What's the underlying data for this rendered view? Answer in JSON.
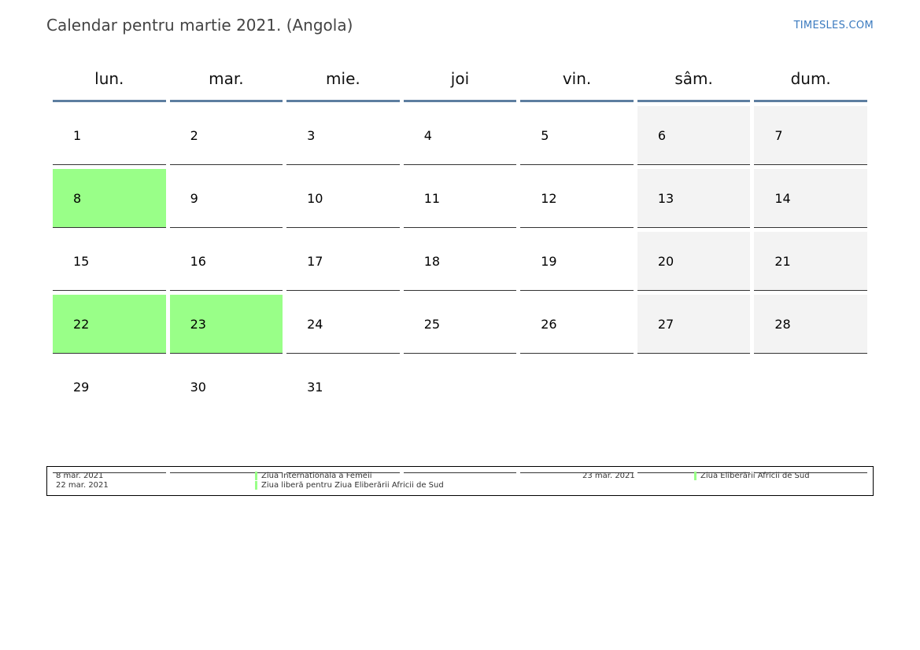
{
  "header": {
    "title": "Calendar pentru martie 2021. (Angola)",
    "brand": "TIMESLES.COM"
  },
  "colors": {
    "holiday": "#99ff88",
    "weekend": "#f3f3f3",
    "header_rule": "#5d7ea0",
    "brand": "#3a7abf"
  },
  "weekdays": [
    "lun.",
    "mar.",
    "mie.",
    "joi",
    "vin.",
    "sâm.",
    "dum."
  ],
  "weeks": [
    [
      {
        "day": "1"
      },
      {
        "day": "2"
      },
      {
        "day": "3"
      },
      {
        "day": "4"
      },
      {
        "day": "5"
      },
      {
        "day": "6",
        "weekend": true
      },
      {
        "day": "7",
        "weekend": true
      }
    ],
    [
      {
        "day": "8",
        "holiday": true
      },
      {
        "day": "9"
      },
      {
        "day": "10"
      },
      {
        "day": "11"
      },
      {
        "day": "12"
      },
      {
        "day": "13",
        "weekend": true
      },
      {
        "day": "14",
        "weekend": true
      }
    ],
    [
      {
        "day": "15"
      },
      {
        "day": "16"
      },
      {
        "day": "17"
      },
      {
        "day": "18"
      },
      {
        "day": "19"
      },
      {
        "day": "20",
        "weekend": true
      },
      {
        "day": "21",
        "weekend": true
      }
    ],
    [
      {
        "day": "22",
        "holiday": true
      },
      {
        "day": "23",
        "holiday": true
      },
      {
        "day": "24"
      },
      {
        "day": "25"
      },
      {
        "day": "26"
      },
      {
        "day": "27",
        "weekend": true
      },
      {
        "day": "28",
        "weekend": true
      }
    ],
    [
      {
        "day": "29"
      },
      {
        "day": "30"
      },
      {
        "day": "31"
      },
      {
        "day": ""
      },
      {
        "day": ""
      },
      {
        "day": ""
      },
      {
        "day": ""
      }
    ]
  ],
  "holidays": [
    {
      "date": "8 mar. 2021",
      "name": "Ziua Internationala a Femeii"
    },
    {
      "date": "22 mar. 2021",
      "name": "Ziua liberă pentru Ziua Eliberării Africii de Sud"
    },
    {
      "date": "23 mar. 2021",
      "name": "Ziua Eliberării Africii de Sud"
    }
  ]
}
